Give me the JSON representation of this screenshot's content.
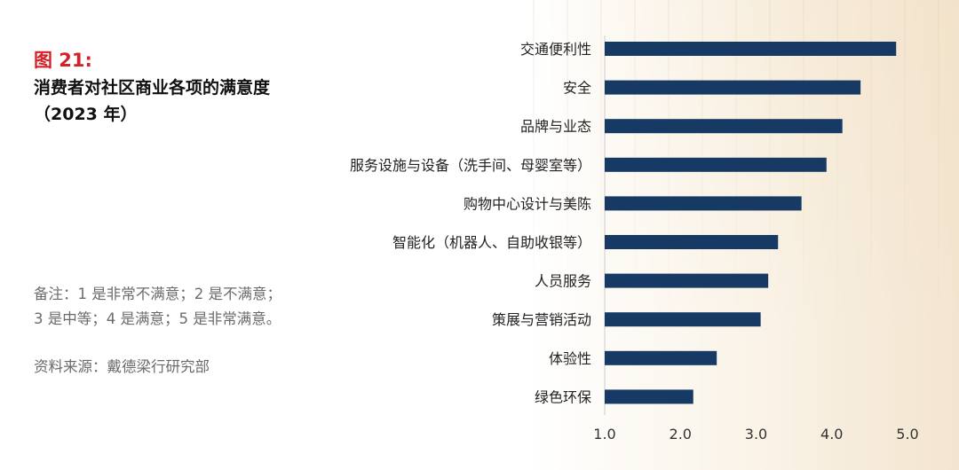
{
  "figure": {
    "label": "图 21:",
    "title_line1": "消费者对社区商业各项的满意度",
    "title_line2": "（2023 年）"
  },
  "note": {
    "line1": "备注：1 是非常不满意；2 是不满意；",
    "line2": "3 是中等；4 是满意；5 是非常满意。"
  },
  "source": "资料来源：戴德梁行研究部",
  "colors": {
    "bar": "#173a64",
    "accent": "#d61f26",
    "axis": "#cccccc"
  },
  "chart_data": {
    "type": "bar",
    "orientation": "horizontal",
    "title": "消费者对社区商业各项的满意度（2023 年）",
    "categories": [
      "交通便利性",
      "安全",
      "品牌与业态",
      "服务设施与设备（洗手间、母婴室等）",
      "购物中心设计与美陈",
      "智能化（机器人、自助收银等）",
      "人员服务",
      "策展与营销活动",
      "体验性",
      "绿色环保"
    ],
    "values": [
      4.85,
      4.38,
      4.14,
      3.93,
      3.6,
      3.29,
      3.16,
      3.06,
      2.48,
      2.17
    ],
    "xlim": [
      1.0,
      5.0
    ],
    "xticks": [
      "1.0",
      "2.0",
      "3.0",
      "4.0",
      "5.0"
    ],
    "xlabel": "",
    "ylabel": "",
    "grid": false,
    "legend": "none"
  }
}
